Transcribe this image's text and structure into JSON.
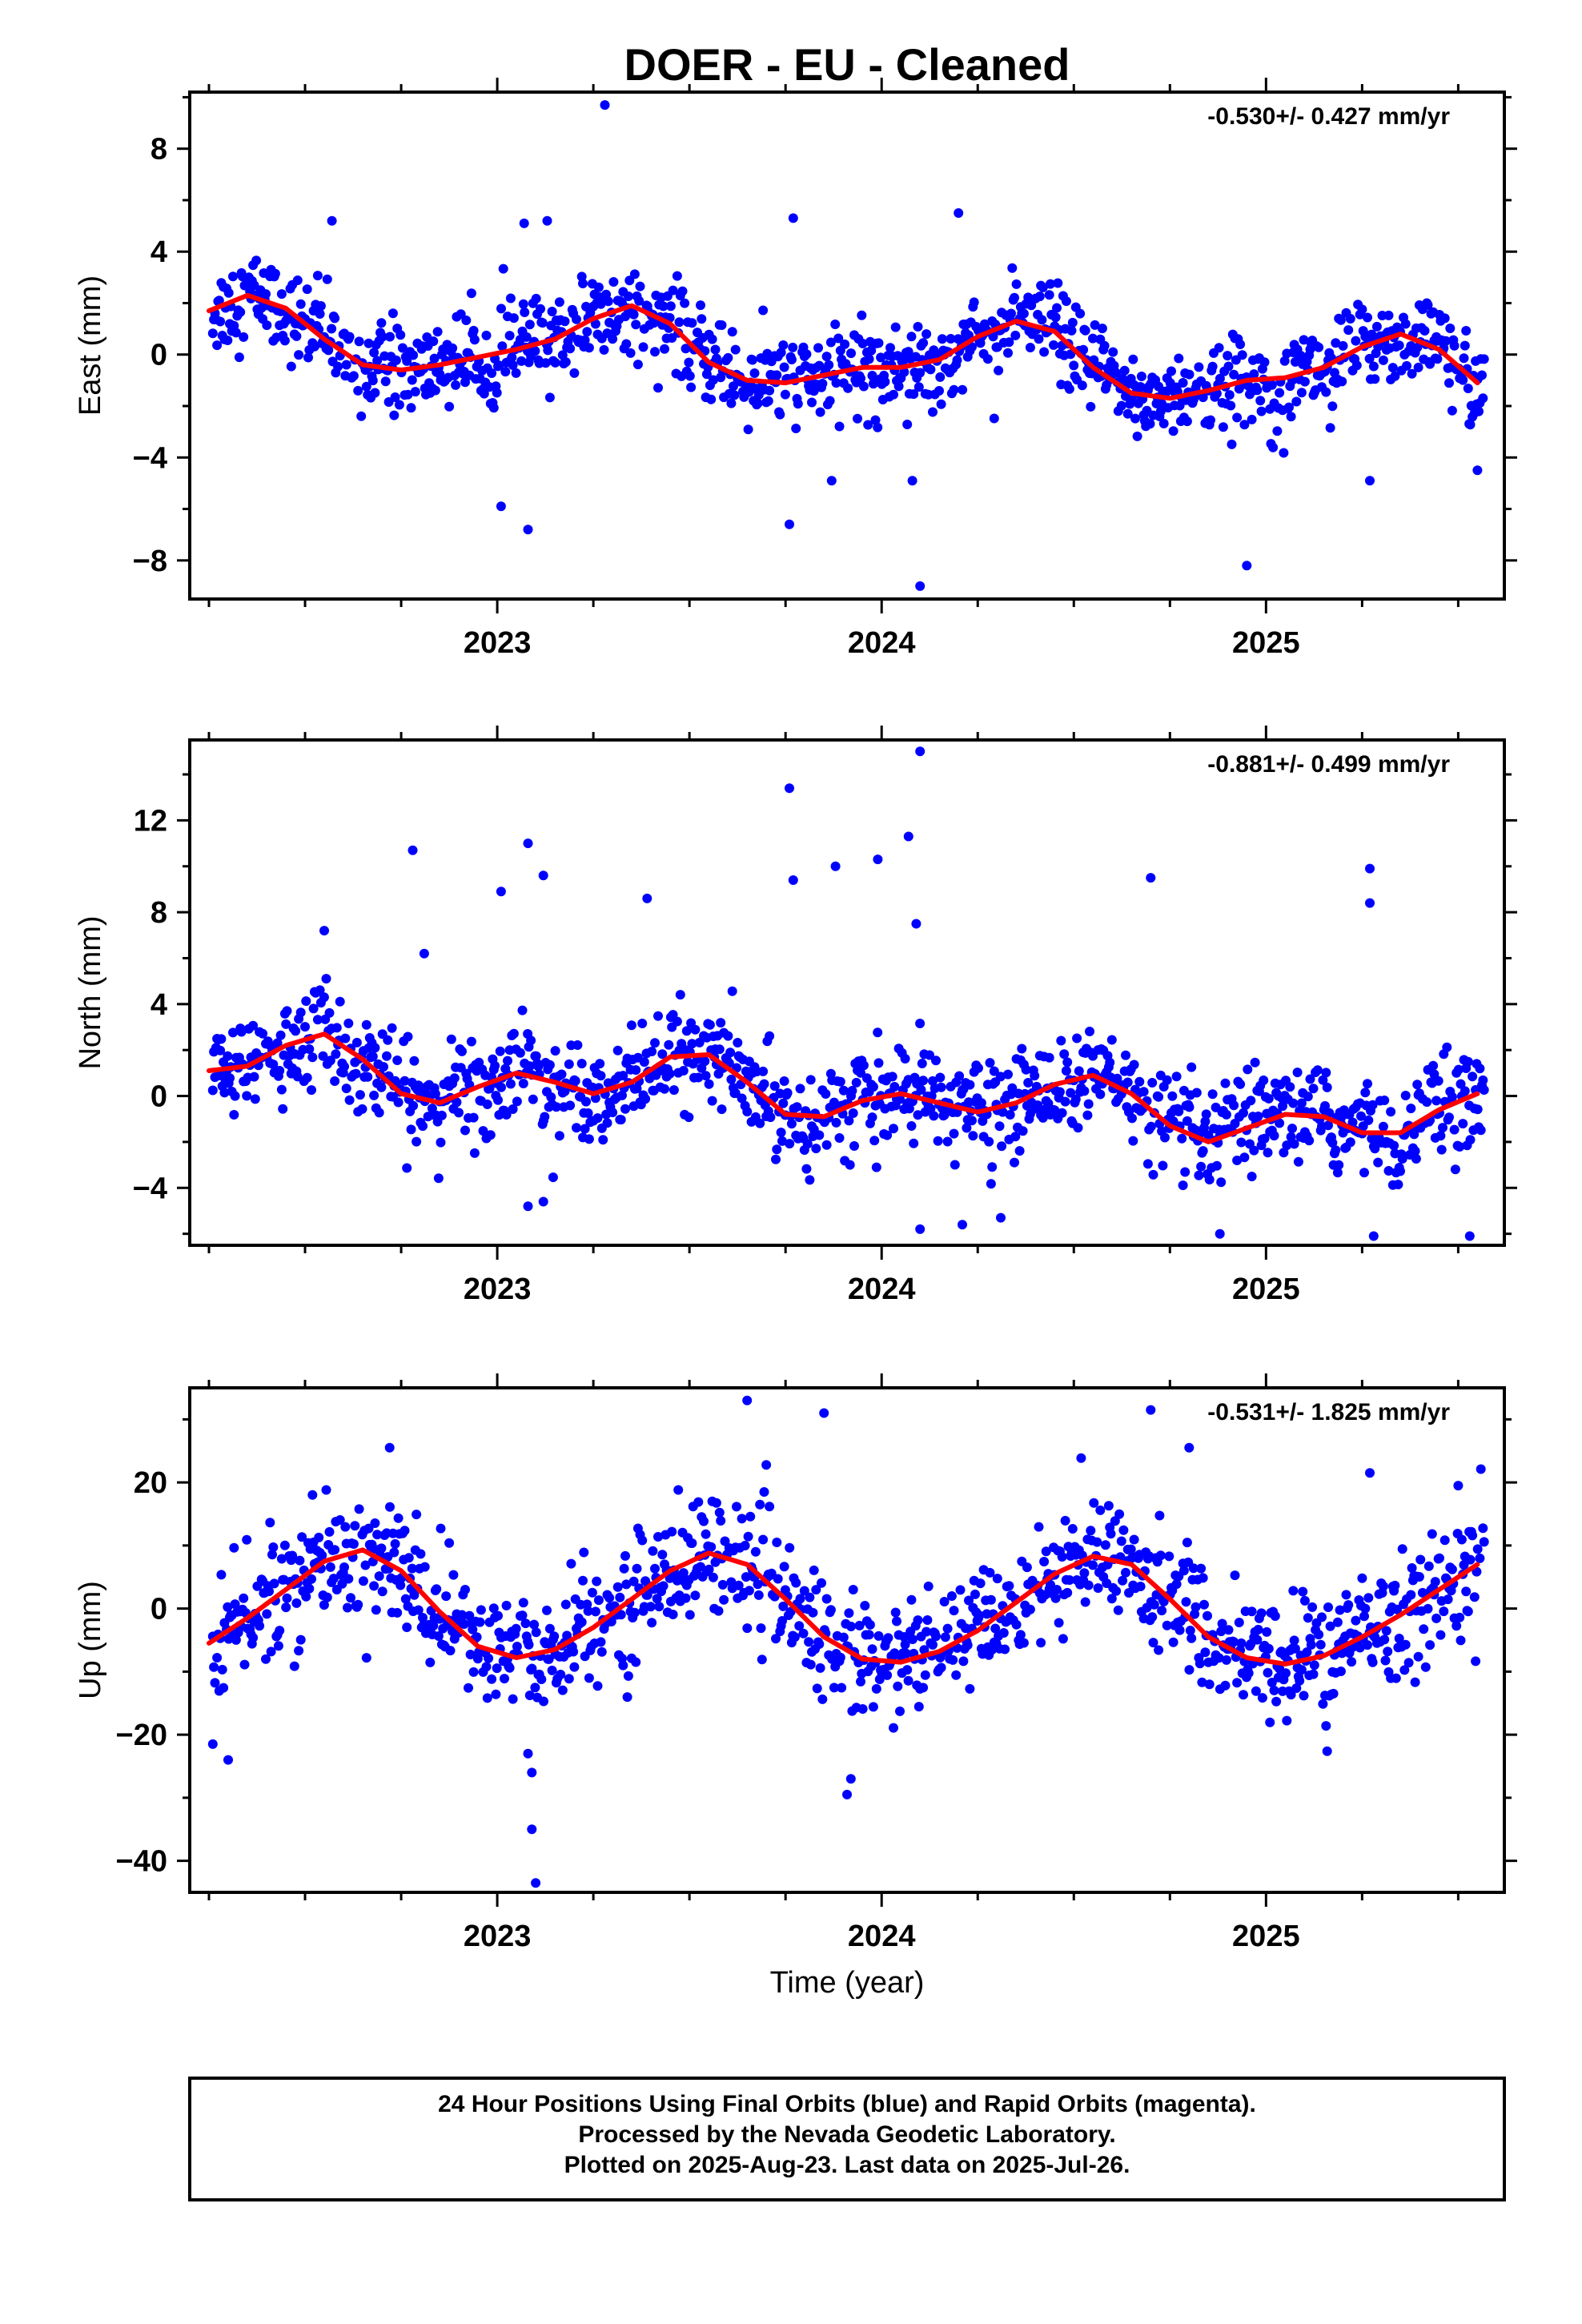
{
  "title": "DOER  - EU - Cleaned",
  "xlabel": "Time (year)",
  "footer": {
    "line1": "24 Hour Positions Using Final Orbits (blue) and Rapid Orbits (magenta).",
    "line2": "Processed by the Nevada Geodetic Laboratory.",
    "line3": "Plotted on 2025-Aug-23. Last data on 2025-Jul-26."
  },
  "colors": {
    "final_orbit_points": "#0000ff",
    "fit_curve": "#ff0000",
    "axes": "#000000"
  },
  "chart_data": [
    {
      "type": "scatter",
      "component": "east",
      "ylabel": "East (mm)",
      "rate_label": "-0.530+/- 0.427 mm/yr",
      "xlim": [
        2022.2,
        2025.62
      ],
      "ylim": [
        -9.5,
        10.2
      ],
      "x_ticks": [
        2023,
        2024,
        2025
      ],
      "y_ticks": [
        -8,
        -4,
        0,
        4,
        8
      ],
      "y_tick_labels": [
        "−8",
        "−4",
        "0",
        "4",
        "8"
      ],
      "fit_curve": {
        "x": [
          2022.25,
          2022.35,
          2022.45,
          2022.55,
          2022.65,
          2022.75,
          2022.85,
          2022.95,
          2023.05,
          2023.15,
          2023.25,
          2023.35,
          2023.45,
          2023.55,
          2023.65,
          2023.75,
          2023.85,
          2023.95,
          2024.05,
          2024.15,
          2024.25,
          2024.35,
          2024.45,
          2024.55,
          2024.65,
          2024.75,
          2024.85,
          2024.95,
          2025.05,
          2025.15,
          2025.25,
          2025.35,
          2025.45,
          2025.55
        ],
        "y": [
          1.7,
          2.3,
          1.8,
          0.6,
          -0.4,
          -0.6,
          -0.4,
          -0.1,
          0.2,
          0.6,
          1.4,
          1.9,
          1.2,
          -0.3,
          -1.0,
          -1.1,
          -0.8,
          -0.5,
          -0.5,
          -0.2,
          0.7,
          1.3,
          0.9,
          -0.5,
          -1.5,
          -1.7,
          -1.4,
          -1.0,
          -0.9,
          -0.5,
          0.3,
          0.8,
          0.2,
          -1.1
        ]
      },
      "outliers": [
        [
          2023.28,
          9.7
        ],
        [
          2023.07,
          5.1
        ],
        [
          2023.13,
          5.2
        ],
        [
          2023.77,
          5.3
        ],
        [
          2024.2,
          5.5
        ],
        [
          2022.57,
          5.2
        ],
        [
          2023.01,
          -5.9
        ],
        [
          2023.08,
          -6.8
        ],
        [
          2023.76,
          -6.6
        ],
        [
          2024.1,
          -9.0
        ],
        [
          2024.95,
          -8.2
        ],
        [
          2025.27,
          -4.9
        ],
        [
          2025.55,
          -4.5
        ],
        [
          2023.87,
          -4.9
        ],
        [
          2024.08,
          -4.9
        ]
      ]
    },
    {
      "type": "scatter",
      "component": "north",
      "ylabel": "North (mm)",
      "rate_label": "-0.881+/- 0.499 mm/yr",
      "xlim": [
        2022.2,
        2025.62
      ],
      "ylim": [
        -6.5,
        15.5
      ],
      "x_ticks": [
        2023,
        2024,
        2025
      ],
      "y_ticks": [
        -4,
        0,
        4,
        8,
        12
      ],
      "y_tick_labels": [
        "−4",
        "0",
        "4",
        "8",
        "12"
      ],
      "fit_curve": {
        "x": [
          2022.25,
          2022.35,
          2022.45,
          2022.55,
          2022.65,
          2022.75,
          2022.85,
          2022.95,
          2023.05,
          2023.15,
          2023.25,
          2023.35,
          2023.45,
          2023.55,
          2023.65,
          2023.75,
          2023.85,
          2023.95,
          2024.05,
          2024.15,
          2024.25,
          2024.35,
          2024.45,
          2024.55,
          2024.65,
          2024.75,
          2024.85,
          2024.95,
          2025.05,
          2025.15,
          2025.25,
          2025.35,
          2025.45,
          2025.55
        ],
        "y": [
          1.1,
          1.3,
          2.2,
          2.7,
          1.6,
          0.1,
          -0.3,
          0.4,
          1.0,
          0.6,
          0.1,
          0.6,
          1.7,
          1.8,
          0.6,
          -0.8,
          -0.9,
          -0.2,
          0.1,
          -0.3,
          -0.7,
          -0.3,
          0.5,
          0.9,
          0.1,
          -1.3,
          -2.0,
          -1.4,
          -0.8,
          -0.9,
          -1.6,
          -1.6,
          -0.6,
          0.1
        ]
      },
      "outliers": [
        [
          2022.78,
          10.7
        ],
        [
          2023.01,
          8.9
        ],
        [
          2023.08,
          11.0
        ],
        [
          2023.12,
          9.6
        ],
        [
          2023.39,
          8.6
        ],
        [
          2023.76,
          13.4
        ],
        [
          2023.77,
          9.4
        ],
        [
          2023.88,
          10.0
        ],
        [
          2023.99,
          10.3
        ],
        [
          2024.07,
          11.3
        ],
        [
          2024.1,
          15.0
        ],
        [
          2024.09,
          7.5
        ],
        [
          2024.7,
          9.5
        ],
        [
          2025.27,
          9.9
        ],
        [
          2025.27,
          8.4
        ],
        [
          2022.81,
          6.2
        ],
        [
          2022.55,
          7.2
        ],
        [
          2023.08,
          -4.8
        ],
        [
          2023.12,
          -4.6
        ],
        [
          2024.1,
          -5.8
        ],
        [
          2024.21,
          -5.6
        ],
        [
          2024.31,
          -5.3
        ],
        [
          2024.88,
          -6.0
        ],
        [
          2025.28,
          -6.1
        ],
        [
          2025.53,
          -6.1
        ]
      ]
    },
    {
      "type": "scatter",
      "component": "up",
      "ylabel": "Up (mm)",
      "rate_label": "-0.531+/- 1.825 mm/yr",
      "xlim": [
        2022.2,
        2025.62
      ],
      "ylim": [
        -45,
        35
      ],
      "x_ticks": [
        2023,
        2024,
        2025
      ],
      "y_ticks": [
        -40,
        -20,
        0,
        20
      ],
      "y_tick_labels": [
        "−40",
        "−20",
        "0",
        "20"
      ],
      "fit_curve": {
        "x": [
          2022.25,
          2022.35,
          2022.45,
          2022.55,
          2022.65,
          2022.75,
          2022.85,
          2022.95,
          2023.05,
          2023.15,
          2023.25,
          2023.35,
          2023.45,
          2023.55,
          2023.65,
          2023.75,
          2023.85,
          2023.95,
          2024.05,
          2024.15,
          2024.25,
          2024.35,
          2024.45,
          2024.55,
          2024.65,
          2024.75,
          2024.85,
          2024.95,
          2025.05,
          2025.15,
          2025.25,
          2025.35,
          2025.45,
          2025.55
        ],
        "y": [
          -5.5,
          -1.5,
          3.0,
          7.5,
          9.3,
          6.0,
          -0.5,
          -6.0,
          -7.8,
          -6.5,
          -3.0,
          1.5,
          6.0,
          8.8,
          7.0,
          1.5,
          -4.5,
          -8.0,
          -8.5,
          -6.8,
          -3.5,
          1.0,
          5.5,
          8.3,
          7.0,
          1.5,
          -4.5,
          -7.8,
          -8.8,
          -7.5,
          -4.5,
          -1.0,
          3.0,
          7.0
        ]
      },
      "outliers": [
        [
          2023.09,
          -35.0
        ],
        [
          2023.1,
          -43.5
        ],
        [
          2023.09,
          -26.0
        ],
        [
          2023.08,
          -23.0
        ],
        [
          2022.3,
          -24.0
        ],
        [
          2022.26,
          -21.5
        ],
        [
          2023.65,
          33.0
        ],
        [
          2023.85,
          31.0
        ],
        [
          2024.7,
          31.5
        ],
        [
          2024.8,
          25.5
        ],
        [
          2022.72,
          25.5
        ],
        [
          2023.91,
          -29.5
        ],
        [
          2023.92,
          -27.0
        ],
        [
          2025.27,
          21.5
        ],
        [
          2025.5,
          19.5
        ]
      ]
    }
  ]
}
